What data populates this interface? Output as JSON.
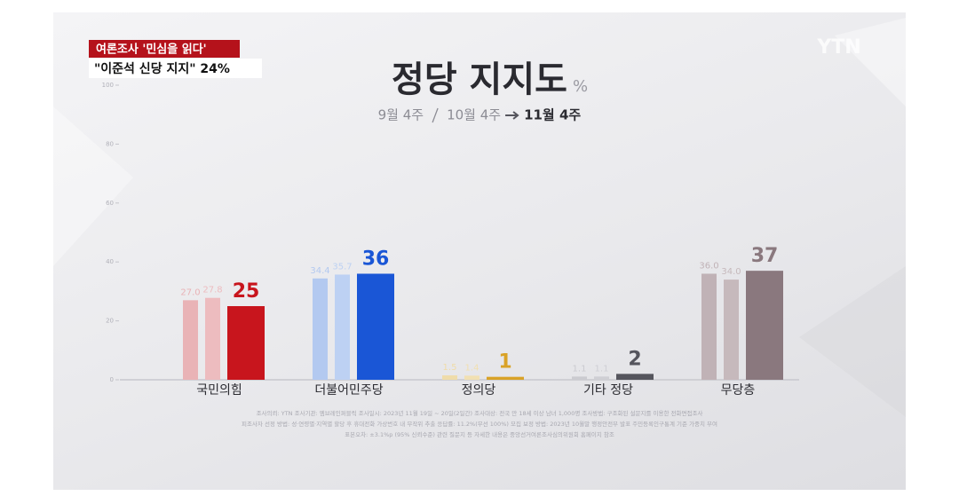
{
  "badge": "여론조사 '민심을 읽다'",
  "headline": "\"이준석 신당 지지\" 24%",
  "logo": "YTN",
  "chart_data": {
    "type": "bar",
    "title": "정당 지지도",
    "unit": "%",
    "categories": [
      "국민의힘",
      "더불어민주당",
      "정의당",
      "기타 정당",
      "무당층"
    ],
    "series": [
      {
        "name": "9월 4주",
        "colors": [
          "#e9b3b6",
          "#b3c9f0",
          "#efdcaa",
          "#cbcbd0",
          "#c0b2b6"
        ],
        "values": [
          27.0,
          34.4,
          1.5,
          1.1,
          36.0
        ],
        "value_labels": [
          "27.0",
          "34.4",
          "1.5",
          "1.1",
          "36.0"
        ]
      },
      {
        "name": "10월 4주",
        "colors": [
          "#edbcbf",
          "#bdd1f3",
          "#f1e0b2",
          "#cfcfd4",
          "#c6b9bc"
        ],
        "values": [
          27.8,
          35.7,
          1.4,
          1.1,
          34.0
        ],
        "value_labels": [
          "27.8",
          "35.7",
          "1.4",
          "1.1",
          "34.0"
        ]
      },
      {
        "name": "11월 4주",
        "colors": [
          "#c8151d",
          "#1a56d6",
          "#d9a227",
          "#55555d",
          "#8a787e"
        ],
        "values": [
          25,
          36,
          1,
          2,
          37
        ]
      }
    ],
    "ylim": [
      0,
      100
    ],
    "yticks": [
      0,
      20,
      40,
      60,
      80,
      100
    ],
    "footnotes": [
      "조사의뢰: YTN   조사기관: 엠브레인퍼블릭   조사일시: 2023년 11월 19일 ~ 20일(2일간)   조사대상: 전국 만 18세 이상 남녀 1,000명   조사방법: 구조화된 설문지를 이용한 전화면접조사",
      "피조사자 선정 방법: 성·연령별·지역별 할당 후 휴대전화 가상번호 내 무작위 추출   응답률: 11.2%(무선 100%)   모집 보정 방법: 2023년 10월말 행정안전부 발표 주민등록인구통계 기준 가중치 부여",
      "표본오차: ±3.1%p (95% 신뢰수준)   관련 질문지 등 자세한 내용은 중앙선거여론조사심의위원회 홈페이지 참조"
    ]
  }
}
